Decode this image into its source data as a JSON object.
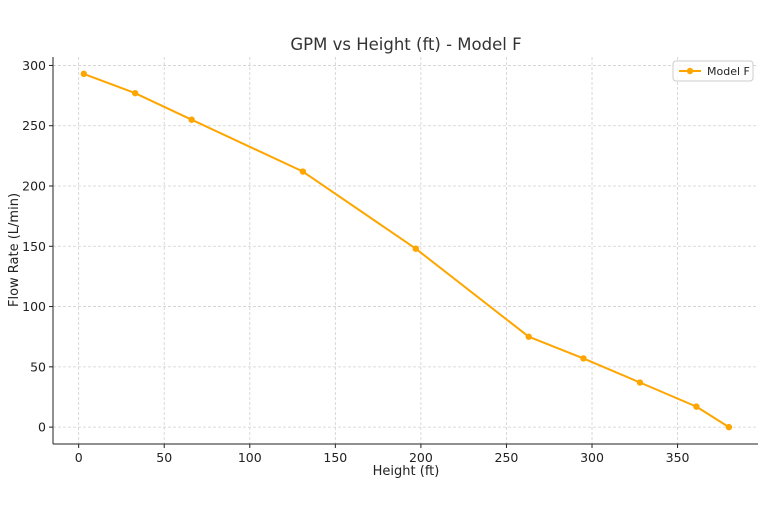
{
  "chart_data": {
    "type": "line",
    "title": "GPM vs Height (ft) - Model F",
    "xlabel": "Height (ft)",
    "ylabel": "Flow Rate (L/min)",
    "xlim": [
      -15,
      397
    ],
    "ylim": [
      -14,
      307
    ],
    "x_ticks": [
      0,
      50,
      100,
      150,
      200,
      250,
      300,
      350
    ],
    "y_ticks": [
      0,
      50,
      100,
      150,
      200,
      250,
      300
    ],
    "grid": true,
    "legend_position": "top-right",
    "series": [
      {
        "name": "Model F",
        "color": "#FFA500",
        "x": [
          3,
          33,
          66,
          131,
          197,
          263,
          295,
          328,
          361,
          380
        ],
        "y": [
          293,
          277,
          255,
          212,
          148,
          75,
          57,
          37,
          17,
          0
        ]
      }
    ]
  }
}
